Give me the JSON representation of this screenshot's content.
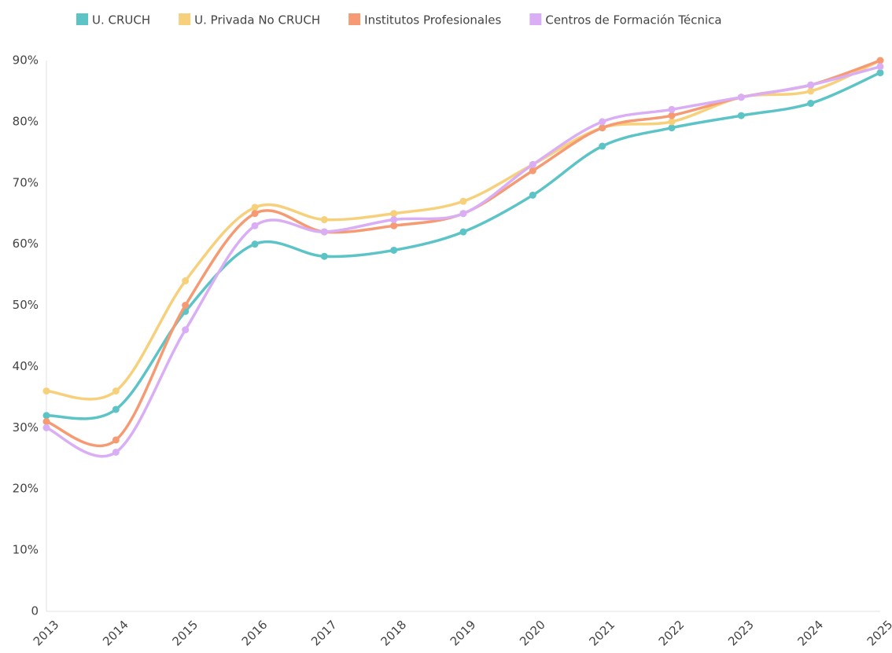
{
  "chart_data": {
    "type": "line",
    "x": [
      "2013",
      "2014",
      "2015",
      "2016",
      "2017",
      "2018",
      "2019",
      "2020",
      "2021",
      "2022",
      "2023",
      "2024",
      "2025"
    ],
    "series": [
      {
        "name": "U. CRUCH",
        "color": "#5cc4c6",
        "values": [
          32,
          33,
          49,
          60,
          58,
          59,
          62,
          68,
          76,
          79,
          81,
          83,
          88
        ]
      },
      {
        "name": "U. Privada No CRUCH",
        "color": "#f7d07b",
        "values": [
          36,
          36,
          54,
          66,
          64,
          65,
          67,
          73,
          79,
          80,
          84,
          85,
          90
        ]
      },
      {
        "name": "Institutos Profesionales",
        "color": "#f59a72",
        "values": [
          31,
          28,
          50,
          65,
          62,
          63,
          65,
          72,
          79,
          81,
          84,
          86,
          90
        ]
      },
      {
        "name": "Centros de Formación Técnica",
        "color": "#d9aef5",
        "values": [
          30,
          26,
          46,
          63,
          62,
          64,
          65,
          73,
          80,
          82,
          84,
          86,
          89
        ]
      }
    ],
    "ylim": [
      0,
      90
    ],
    "yticks": [
      0,
      {
        "value": 10,
        "label": "10%"
      },
      {
        "value": 20,
        "label": "20%"
      },
      {
        "value": 30,
        "label": "30%"
      },
      {
        "value": 40,
        "label": "40%"
      },
      {
        "value": 50,
        "label": "50%"
      },
      {
        "value": 60,
        "label": "60%"
      },
      {
        "value": 70,
        "label": "70%"
      },
      {
        "value": 80,
        "label": "80%"
      },
      {
        "value": 90,
        "label": "90%"
      }
    ],
    "grid": false,
    "legend": "top"
  }
}
